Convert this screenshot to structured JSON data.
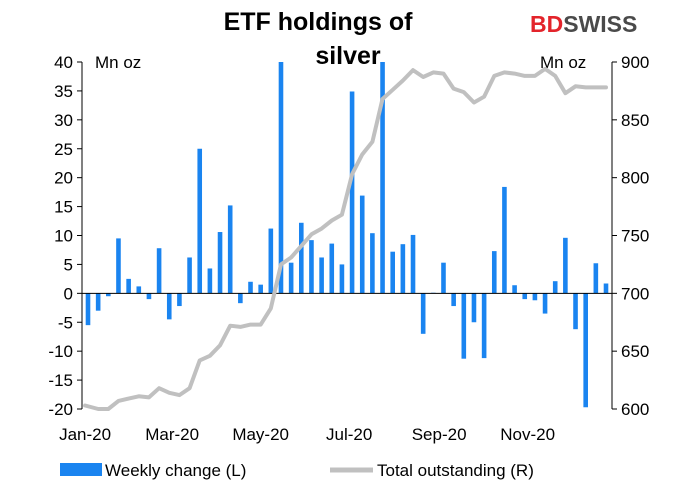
{
  "chart_data": {
    "type": "bar+line",
    "title_lines": [
      "ETF holdings of",
      "silver"
    ],
    "left_unit": "Mn oz",
    "right_unit": "Mn oz",
    "logo": {
      "part1": "BD",
      "part2": "SWISS"
    },
    "colors": {
      "bar": "#1a84f0",
      "line": "#c0c0c0"
    },
    "x_axis": {
      "start": "2020-01-03",
      "end": "2020-12-25",
      "tick_labels": [
        "Jan-20",
        "Mar-20",
        "May-20",
        "Jul-20",
        "Sep-20",
        "Nov-20"
      ],
      "tick_dates": [
        "2020-01-01",
        "2020-03-01",
        "2020-05-01",
        "2020-07-01",
        "2020-09-01",
        "2020-11-01"
      ]
    },
    "left_axis": {
      "min": -20,
      "max": 40,
      "ticks": [
        40,
        35,
        30,
        25,
        20,
        15,
        10,
        5,
        0,
        -5,
        -10,
        -15,
        -20
      ]
    },
    "right_axis": {
      "min": 600,
      "max": 900,
      "ticks": [
        900,
        850,
        800,
        750,
        700,
        650,
        600
      ]
    },
    "weekly_change": {
      "name": "Weekly change (L)",
      "dates": [
        "2020-01-03",
        "2020-01-10",
        "2020-01-17",
        "2020-01-24",
        "2020-01-31",
        "2020-02-07",
        "2020-02-14",
        "2020-02-21",
        "2020-02-28",
        "2020-03-06",
        "2020-03-13",
        "2020-03-20",
        "2020-03-27",
        "2020-04-03",
        "2020-04-10",
        "2020-04-17",
        "2020-04-24",
        "2020-05-01",
        "2020-05-08",
        "2020-05-15",
        "2020-05-22",
        "2020-05-29",
        "2020-06-05",
        "2020-06-12",
        "2020-06-19",
        "2020-06-26",
        "2020-07-03",
        "2020-07-10",
        "2020-07-17",
        "2020-07-24",
        "2020-07-31",
        "2020-08-07",
        "2020-08-14",
        "2020-08-21",
        "2020-08-28",
        "2020-09-04",
        "2020-09-11",
        "2020-09-18",
        "2020-09-25",
        "2020-10-02",
        "2020-10-09",
        "2020-10-16",
        "2020-10-23",
        "2020-10-30",
        "2020-11-06",
        "2020-11-13",
        "2020-11-20",
        "2020-11-27",
        "2020-12-04",
        "2020-12-11",
        "2020-12-18",
        "2020-12-25"
      ],
      "values": [
        -5.5,
        -3,
        -0.5,
        9.5,
        2.5,
        1.2,
        -1,
        7.8,
        -4.5,
        -2.2,
        6.2,
        25,
        4.3,
        10.6,
        15.2,
        -1.7,
        2,
        1.5,
        11.2,
        40,
        5.3,
        12.2,
        9.2,
        6.2,
        8.6,
        5,
        34.9,
        16.9,
        10.4,
        40,
        7.2,
        8.5,
        10.1,
        -7,
        0.1,
        5.3,
        -2.2,
        -11.3,
        -5,
        -11.2,
        7.3,
        18.4,
        1.4,
        -1,
        -1.2,
        -3.5,
        2.1,
        9.6,
        -6.2,
        -19.7,
        5.2,
        1.7
      ]
    },
    "total_outstanding": {
      "name": "Total outstanding (R)",
      "dates": [
        "2020-01-01",
        "2020-01-10",
        "2020-01-17",
        "2020-01-24",
        "2020-01-31",
        "2020-02-07",
        "2020-02-14",
        "2020-02-21",
        "2020-02-28",
        "2020-03-06",
        "2020-03-13",
        "2020-03-20",
        "2020-03-27",
        "2020-04-03",
        "2020-04-10",
        "2020-04-17",
        "2020-04-24",
        "2020-05-01",
        "2020-05-08",
        "2020-05-15",
        "2020-05-22",
        "2020-05-29",
        "2020-06-05",
        "2020-06-12",
        "2020-06-19",
        "2020-06-26",
        "2020-07-03",
        "2020-07-10",
        "2020-07-17",
        "2020-07-24",
        "2020-07-31",
        "2020-08-07",
        "2020-08-14",
        "2020-08-21",
        "2020-08-28",
        "2020-09-04",
        "2020-09-11",
        "2020-09-18",
        "2020-09-25",
        "2020-10-02",
        "2020-10-09",
        "2020-10-16",
        "2020-10-23",
        "2020-10-30",
        "2020-11-06",
        "2020-11-13",
        "2020-11-20",
        "2020-11-27",
        "2020-12-04",
        "2020-12-11",
        "2020-12-18",
        "2020-12-25"
      ],
      "values": [
        603,
        600,
        600,
        607,
        609,
        611,
        610,
        618,
        614,
        612,
        618,
        642,
        646,
        655,
        672,
        671,
        673,
        673,
        687,
        725,
        731,
        741,
        751,
        756,
        763,
        768,
        803,
        820,
        831,
        868,
        876,
        884,
        893,
        887,
        891,
        890,
        877,
        874,
        865,
        870,
        888,
        891,
        890,
        888,
        888,
        894,
        888,
        873,
        879,
        878,
        878,
        878
      ]
    }
  }
}
